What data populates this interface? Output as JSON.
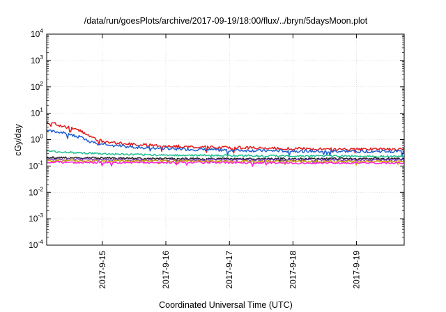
{
  "chart_data": {
    "type": "line",
    "title": "/data/run/goesPlots/archive/2017-09-19/18:00/flux/../bryn/5daysMoon.plot",
    "xlabel": "Coordinated Universal Time (UTC)",
    "ylabel": "cGy/day",
    "yscale": "log",
    "ylim": [
      0.0001,
      10000
    ],
    "xlim": [
      "2017-09-14T03:00",
      "2017-09-19T18:00"
    ],
    "x_ticks": [
      "2017-9-15",
      "2017-9-16",
      "2017-9-17",
      "2017-9-18",
      "2017-9-19"
    ],
    "x_tick_dates": [
      "2017-09-15",
      "2017-09-16",
      "2017-09-17",
      "2017-09-18",
      "2017-09-19"
    ],
    "y_ticks": [
      {
        "value": 0.0001,
        "base": "10",
        "exp": "-4"
      },
      {
        "value": 0.001,
        "base": "10",
        "exp": "-3"
      },
      {
        "value": 0.01,
        "base": "10",
        "exp": "-2"
      },
      {
        "value": 0.1,
        "base": "10",
        "exp": "-1"
      },
      {
        "value": 1,
        "base": "10",
        "exp": "0"
      },
      {
        "value": 10,
        "base": "10",
        "exp": "1"
      },
      {
        "value": 100,
        "base": "10",
        "exp": "2"
      },
      {
        "value": 1000,
        "base": "10",
        "exp": "3"
      },
      {
        "value": 10000,
        "base": "10",
        "exp": "4"
      }
    ],
    "grid": true,
    "series": [
      {
        "color": "#e41a1c",
        "x": [
          "2017-09-14T03:00",
          "2017-09-14T06:00",
          "2017-09-14T09:00",
          "2017-09-14T12:00",
          "2017-09-14T15:00",
          "2017-09-14T18:00",
          "2017-09-14T21:00",
          "2017-09-15T00:00",
          "2017-09-15T06:00",
          "2017-09-15T12:00",
          "2017-09-16T00:00",
          "2017-09-16T12:00",
          "2017-09-17T00:00",
          "2017-09-17T12:00",
          "2017-09-18T00:00",
          "2017-09-18T12:00",
          "2017-09-19T00:00",
          "2017-09-19T12:00",
          "2017-09-19T18:00"
        ],
        "y": [
          4.5,
          4.0,
          3.2,
          2.8,
          2.3,
          1.6,
          1.1,
          0.85,
          0.75,
          0.65,
          0.58,
          0.52,
          0.5,
          0.48,
          0.45,
          0.44,
          0.44,
          0.43,
          0.43
        ]
      },
      {
        "color": "#1f5fd0",
        "x": [
          "2017-09-14T03:00",
          "2017-09-14T06:00",
          "2017-09-14T09:00",
          "2017-09-14T12:00",
          "2017-09-14T15:00",
          "2017-09-14T18:00",
          "2017-09-14T21:00",
          "2017-09-15T00:00",
          "2017-09-15T06:00",
          "2017-09-15T12:00",
          "2017-09-16T00:00",
          "2017-09-16T12:00",
          "2017-09-17T00:00",
          "2017-09-17T12:00",
          "2017-09-18T00:00",
          "2017-09-18T12:00",
          "2017-09-19T00:00",
          "2017-09-19T12:00",
          "2017-09-19T18:00"
        ],
        "y": [
          2.3,
          2.0,
          1.8,
          1.6,
          1.3,
          0.95,
          0.75,
          0.65,
          0.58,
          0.52,
          0.46,
          0.42,
          0.4,
          0.38,
          0.37,
          0.36,
          0.36,
          0.36,
          0.36
        ]
      },
      {
        "color": "#1fbf8f",
        "x": [
          "2017-09-14T03:00",
          "2017-09-14T12:00",
          "2017-09-15T00:00",
          "2017-09-15T12:00",
          "2017-09-16T00:00",
          "2017-09-17T00:00",
          "2017-09-18T00:00",
          "2017-09-19T00:00",
          "2017-09-19T18:00"
        ],
        "y": [
          0.36,
          0.33,
          0.29,
          0.27,
          0.26,
          0.25,
          0.24,
          0.24,
          0.23
        ]
      },
      {
        "color": "#222222",
        "x": [
          "2017-09-14T03:00",
          "2017-09-15T00:00",
          "2017-09-16T00:00",
          "2017-09-17T00:00",
          "2017-09-18T00:00",
          "2017-09-19T00:00",
          "2017-09-19T18:00"
        ],
        "y": [
          0.21,
          0.2,
          0.19,
          0.19,
          0.19,
          0.19,
          0.19
        ]
      },
      {
        "color": "#7b3fbf",
        "x": [
          "2017-09-14T03:00",
          "2017-09-15T00:00",
          "2017-09-16T00:00",
          "2017-09-17T00:00",
          "2017-09-18T00:00",
          "2017-09-19T00:00",
          "2017-09-19T18:00"
        ],
        "y": [
          0.18,
          0.175,
          0.17,
          0.17,
          0.17,
          0.17,
          0.17
        ]
      },
      {
        "color": "#c8a000",
        "x": [
          "2017-09-14T03:00",
          "2017-09-15T00:00",
          "2017-09-16T00:00",
          "2017-09-17T00:00",
          "2017-09-18T00:00",
          "2017-09-19T00:00",
          "2017-09-19T18:00"
        ],
        "y": [
          0.16,
          0.155,
          0.155,
          0.15,
          0.15,
          0.15,
          0.15
        ]
      },
      {
        "color": "#ff1fd6",
        "x": [
          "2017-09-14T03:00",
          "2017-09-15T00:00",
          "2017-09-16T00:00",
          "2017-09-17T00:00",
          "2017-09-18T00:00",
          "2017-09-19T00:00",
          "2017-09-19T18:00"
        ],
        "y": [
          0.14,
          0.135,
          0.135,
          0.135,
          0.13,
          0.13,
          0.13
        ]
      }
    ]
  }
}
